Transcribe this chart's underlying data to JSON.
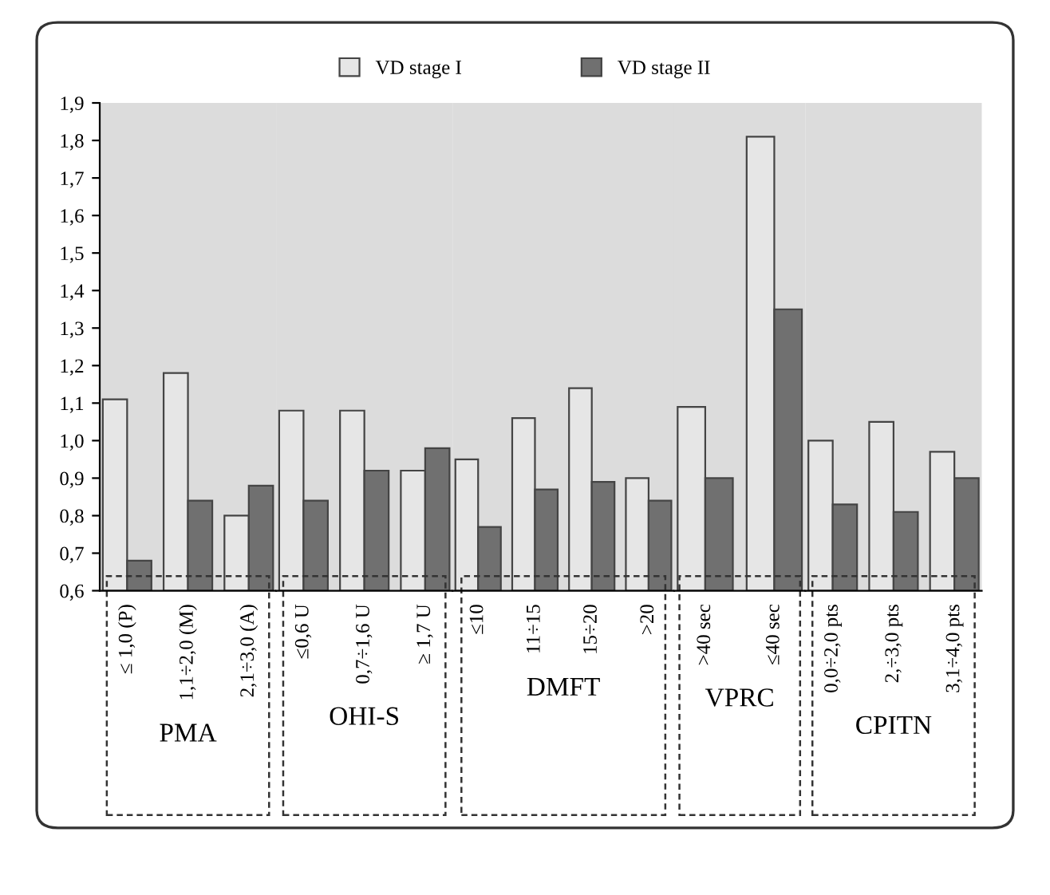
{
  "chart_data": [
    {
      "type": "bar",
      "categories": [
        "≤ 1,0 (P)",
        "1,1÷2,0 (M)",
        "2,1÷3,0 (A)"
      ],
      "xlabel": "PMA",
      "ylim": [
        0.6,
        1.9
      ],
      "yticks": [
        {
          "value": 0.6,
          "label": "0,6"
        },
        {
          "value": 0.7,
          "label": "0,7"
        },
        {
          "value": 0.8,
          "label": "0,8"
        },
        {
          "value": 0.9,
          "label": "0,9"
        },
        {
          "value": 1.0,
          "label": "1,0"
        },
        {
          "value": 1.1,
          "label": "1,1"
        },
        {
          "value": 1.2,
          "label": "1,2"
        },
        {
          "value": 1.3,
          "label": "1,3"
        },
        {
          "value": 1.4,
          "label": "1,4"
        },
        {
          "value": 1.5,
          "label": "1,5"
        },
        {
          "value": 1.6,
          "label": "1,6"
        },
        {
          "value": 1.7,
          "label": "1,7"
        },
        {
          "value": 1.8,
          "label": "1,8"
        },
        {
          "value": 1.9,
          "label": "1,9"
        }
      ],
      "legend": "top",
      "series": [
        {
          "name": "VD stage I",
          "color": "#e6e6e6",
          "values": [
            1.11,
            1.18,
            0.8
          ]
        },
        {
          "name": "VD stage II",
          "color": "#707070",
          "values": [
            0.68,
            0.84,
            0.88
          ]
        }
      ]
    },
    {
      "type": "bar",
      "categories": [
        "≤0,6 U",
        "0,7÷1,6 U",
        "≥ 1,7 U"
      ],
      "xlabel": "OHI-S",
      "ylim": [
        0.6,
        1.9
      ],
      "tick_labels": "x",
      "series": [
        {
          "color": "#e6e6e6",
          "values": [
            1.08,
            1.08,
            0.92
          ]
        },
        {
          "color": "#707070",
          "values": [
            0.84,
            0.92,
            0.98
          ]
        }
      ]
    },
    {
      "type": "bar",
      "categories": [
        "≤10",
        "11÷15",
        "15÷20",
        ">20"
      ],
      "xlabel": "DMFT",
      "ylim": [
        0.6,
        1.9
      ],
      "tick_labels": "x",
      "series": [
        {
          "color": "#e6e6e6",
          "values": [
            0.95,
            1.06,
            1.14,
            0.9
          ]
        },
        {
          "color": "#707070",
          "values": [
            0.77,
            0.87,
            0.89,
            0.84
          ]
        }
      ]
    },
    {
      "type": "bar",
      "categories": [
        ">40 sec",
        "≤40 sec"
      ],
      "xlabel": "VPRC",
      "ylim": [
        0.6,
        1.9
      ],
      "tick_labels": "x",
      "series": [
        {
          "color": "#e6e6e6",
          "values": [
            1.09,
            1.81
          ]
        },
        {
          "color": "#707070",
          "values": [
            0.9,
            1.35
          ]
        }
      ]
    },
    {
      "type": "bar",
      "categories": [
        "0,0÷2,0 pts",
        "2,÷3,0 pts",
        "3,1÷4,0 pts"
      ],
      "xlabel": "CPITN",
      "ylim": [
        0.6,
        1.9
      ],
      "tick_labels": "x",
      "series": [
        {
          "color": "#e6e6e6",
          "values": [
            1.0,
            1.05,
            0.97
          ]
        },
        {
          "color": "#707070",
          "values": [
            0.83,
            0.81,
            0.9
          ]
        }
      ]
    }
  ]
}
